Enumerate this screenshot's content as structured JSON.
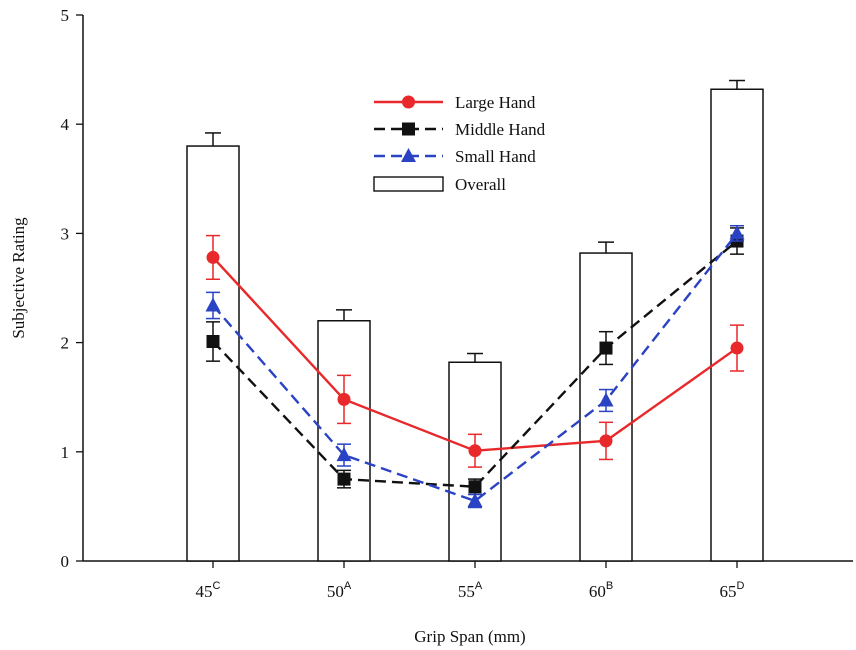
{
  "chart_data": {
    "type": "bar+line",
    "title": "",
    "xlabel": "Grip Span (mm)",
    "ylabel": "Subjective Rating",
    "ylim": [
      0,
      5
    ],
    "yticks": [
      0,
      1,
      2,
      3,
      4,
      5
    ],
    "categories": [
      {
        "label": "45",
        "sup": "C"
      },
      {
        "label": "50",
        "sup": "A"
      },
      {
        "label": "55",
        "sup": "A"
      },
      {
        "label": "60",
        "sup": "B"
      },
      {
        "label": "65",
        "sup": "D"
      }
    ],
    "bars": {
      "name": "Overall",
      "values": [
        3.8,
        2.2,
        1.82,
        2.82,
        4.32
      ],
      "errors": [
        0.12,
        0.1,
        0.08,
        0.1,
        0.08
      ]
    },
    "series": [
      {
        "name": "Large Hand",
        "color": "#e8282a",
        "marker": "circle",
        "dash": "solid",
        "values": [
          2.78,
          1.48,
          1.01,
          1.1,
          1.95
        ],
        "errors": [
          0.2,
          0.22,
          0.15,
          0.17,
          0.21
        ]
      },
      {
        "name": "Middle Hand",
        "color": "#111111",
        "marker": "square",
        "dash": "dashed",
        "values": [
          2.01,
          0.75,
          0.68,
          1.95,
          2.93
        ],
        "errors": [
          0.18,
          0.08,
          0.07,
          0.15,
          0.12
        ]
      },
      {
        "name": "Small Hand",
        "color": "#2a43c4",
        "marker": "triangle",
        "dash": "dashed",
        "values": [
          2.34,
          0.97,
          0.55,
          1.47,
          3.0
        ],
        "errors": [
          0.12,
          0.1,
          0.06,
          0.1,
          0.07
        ]
      }
    ],
    "legend_position": "top-center",
    "grid": false
  }
}
